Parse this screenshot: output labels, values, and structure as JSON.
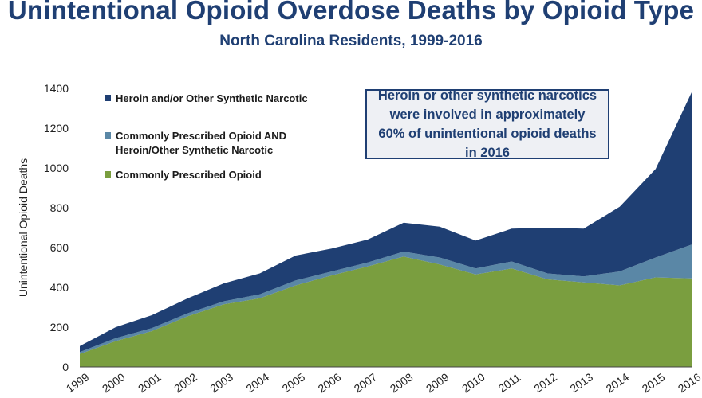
{
  "header": {
    "title": "Unintentional Opioid Overdose Deaths by Opioid Type",
    "subtitle": "North Carolina Residents, 1999-2016"
  },
  "callout": {
    "text": "Heroin or other synthetic narcotics were involved in approximately 60% of unintentional opioid deaths in 2016"
  },
  "colors": {
    "heroin": "#1f3f73",
    "both": "#5a87a6",
    "prescribed": "#7a9e3f",
    "text": "#1f3f73"
  },
  "chart_data": {
    "type": "area",
    "stacked": true,
    "title": "Unintentional Opioid Overdose Deaths by Opioid Type",
    "subtitle": "North Carolina Residents, 1999-2016",
    "ylabel": "Unintentional Opioid Deaths",
    "xlabel": "",
    "ylim": [
      0,
      1400
    ],
    "yticks": [
      0,
      200,
      400,
      600,
      800,
      1000,
      1200,
      1400
    ],
    "legend_position": "top-left",
    "grid": false,
    "x": [
      "1999",
      "2000",
      "2001",
      "2002",
      "2003",
      "2004",
      "2005",
      "2006",
      "2007",
      "2008",
      "2009",
      "2010",
      "2011",
      "2012",
      "2013",
      "2014",
      "2015",
      "2016"
    ],
    "series": [
      {
        "name": "Commonly Prescribed Opioid",
        "color": "#7a9e3f",
        "values": [
          65,
          130,
          180,
          255,
          315,
          345,
          410,
          460,
          505,
          555,
          515,
          465,
          495,
          440,
          425,
          410,
          450,
          445
        ]
      },
      {
        "name": "Commonly Prescribed Opioid AND Heroin/Other Synthetic Narcotic",
        "color": "#5a87a6",
        "values": [
          10,
          15,
          15,
          15,
          15,
          20,
          25,
          20,
          20,
          25,
          35,
          30,
          35,
          30,
          30,
          70,
          100,
          170
        ]
      },
      {
        "name": "Heroin and/or Other Synthetic Narcotic",
        "color": "#1f3f73",
        "values": [
          30,
          55,
          65,
          75,
          90,
          105,
          125,
          115,
          115,
          145,
          155,
          140,
          165,
          230,
          240,
          325,
          445,
          765
        ]
      }
    ],
    "legend": [
      "Heroin and/or Other Synthetic Narcotic",
      "Commonly Prescribed Opioid AND Heroin/Other Synthetic Narcotic",
      "Commonly Prescribed Opioid"
    ]
  }
}
